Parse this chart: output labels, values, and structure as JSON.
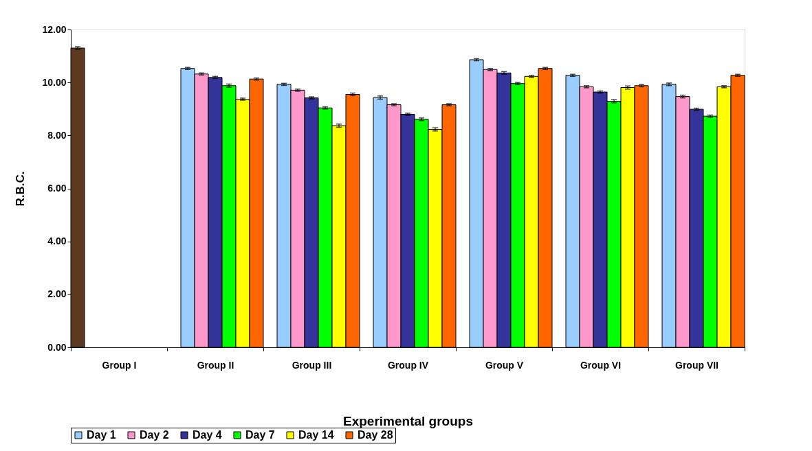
{
  "chart_data": {
    "type": "bar",
    "xlabel": "Experimental groups",
    "ylabel": "R.B.C.",
    "categories": [
      "Group I",
      "Group II",
      "Group III",
      "Group IV",
      "Group V",
      "Group VI",
      "Group VII"
    ],
    "series": [
      {
        "color": "#5c3a22",
        "values": [
          11.3,
          null,
          null,
          null,
          null,
          null,
          null
        ],
        "errors": [
          0.05,
          null,
          null,
          null,
          null,
          null,
          null
        ]
      },
      {
        "name": "Day 1",
        "color": "#99ccff",
        "values": [
          null,
          10.53,
          9.93,
          9.43,
          10.86,
          10.27,
          9.93
        ],
        "errors": [
          null,
          0.04,
          0.04,
          0.06,
          0.04,
          0.04,
          0.05
        ]
      },
      {
        "name": "Day 2",
        "color": "#ff99cc",
        "values": [
          null,
          10.32,
          9.71,
          9.16,
          10.49,
          9.84,
          9.47
        ],
        "errors": [
          null,
          0.04,
          0.04,
          0.04,
          0.04,
          0.04,
          0.05
        ]
      },
      {
        "name": "Day 4",
        "color": "#333399",
        "values": [
          null,
          10.19,
          9.42,
          8.8,
          10.36,
          9.64,
          8.99
        ],
        "errors": [
          null,
          0.04,
          0.04,
          0.04,
          0.05,
          0.04,
          0.04
        ]
      },
      {
        "name": "Day 7",
        "color": "#00ff00",
        "values": [
          null,
          9.88,
          9.04,
          8.61,
          9.96,
          9.29,
          8.73
        ],
        "errors": [
          null,
          0.06,
          0.04,
          0.05,
          0.04,
          0.06,
          0.04
        ]
      },
      {
        "name": "Day 14",
        "color": "#ffff00",
        "values": [
          null,
          9.37,
          8.37,
          8.23,
          10.23,
          9.81,
          9.84
        ],
        "errors": [
          null,
          0.04,
          0.06,
          0.06,
          0.04,
          0.06,
          0.04
        ]
      },
      {
        "name": "Day 28",
        "color": "#ff6600",
        "values": [
          null,
          10.13,
          9.55,
          9.16,
          10.53,
          9.88,
          10.27
        ],
        "errors": [
          null,
          0.04,
          0.05,
          0.04,
          0.04,
          0.04,
          0.04
        ]
      }
    ],
    "ylim": [
      0,
      12
    ],
    "yticks": [
      {
        "value": 0,
        "label": "0.00"
      },
      {
        "value": 2,
        "label": "2.00"
      },
      {
        "value": 4,
        "label": "4.00"
      },
      {
        "value": 6,
        "label": "6.00"
      },
      {
        "value": 8,
        "label": "8.00"
      },
      {
        "value": 10,
        "label": "10.00"
      },
      {
        "value": 12,
        "label": "12.00"
      }
    ],
    "grid": false,
    "legend": "bottom"
  }
}
